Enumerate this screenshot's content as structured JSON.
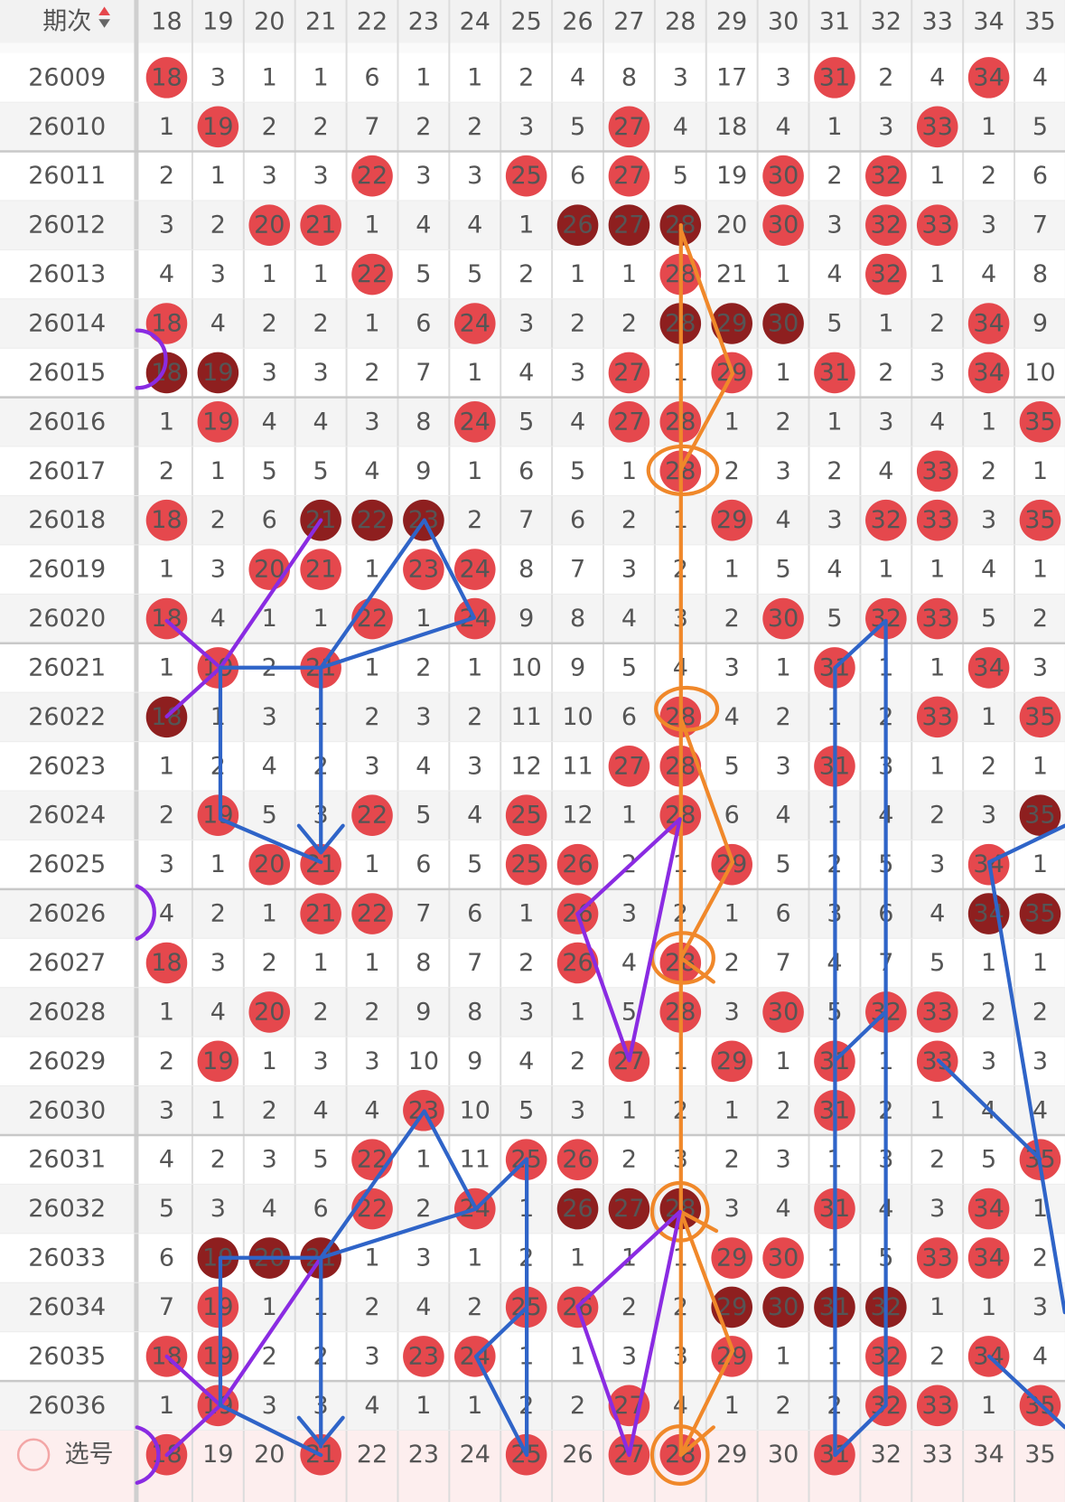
{
  "header": {
    "issue_label": "期次",
    "numbers": [
      "18",
      "19",
      "20",
      "21",
      "22",
      "23",
      "24",
      "25",
      "26",
      "27",
      "28",
      "29",
      "30",
      "31",
      "32",
      "33",
      "34",
      "35"
    ]
  },
  "rows": [
    {
      "issue": "26009",
      "cells": [
        "18",
        "3",
        "1",
        "1",
        "6",
        "1",
        "1",
        "2",
        "4",
        "8",
        "3",
        "17",
        "3",
        "31",
        "2",
        "4",
        "34",
        "4"
      ],
      "balls": [
        "red",
        null,
        null,
        null,
        null,
        null,
        null,
        null,
        null,
        null,
        null,
        null,
        null,
        "red",
        null,
        null,
        "red",
        null
      ]
    },
    {
      "issue": "26010",
      "cells": [
        "1",
        "19",
        "2",
        "2",
        "7",
        "2",
        "2",
        "3",
        "5",
        "27",
        "4",
        "18",
        "4",
        "1",
        "3",
        "33",
        "1",
        "5"
      ],
      "balls": [
        null,
        "red",
        null,
        null,
        null,
        null,
        null,
        null,
        null,
        "red",
        null,
        null,
        null,
        null,
        null,
        "red",
        null,
        null
      ]
    },
    {
      "issue": "26011",
      "cells": [
        "2",
        "1",
        "3",
        "3",
        "22",
        "3",
        "3",
        "25",
        "6",
        "27",
        "5",
        "19",
        "30",
        "2",
        "32",
        "1",
        "2",
        "6"
      ],
      "balls": [
        null,
        null,
        null,
        null,
        "red",
        null,
        null,
        "red",
        null,
        "red",
        null,
        null,
        "red",
        null,
        "red",
        null,
        null,
        null
      ]
    },
    {
      "issue": "26012",
      "cells": [
        "3",
        "2",
        "20",
        "21",
        "1",
        "4",
        "4",
        "1",
        "26",
        "27",
        "28",
        "20",
        "30",
        "3",
        "32",
        "33",
        "3",
        "7"
      ],
      "balls": [
        null,
        null,
        "red",
        "red",
        null,
        null,
        null,
        null,
        "dark",
        "dark",
        "dark",
        null,
        "red",
        null,
        "red",
        "red",
        null,
        null
      ]
    },
    {
      "issue": "26013",
      "cells": [
        "4",
        "3",
        "1",
        "1",
        "22",
        "5",
        "5",
        "2",
        "1",
        "1",
        "28",
        "21",
        "1",
        "4",
        "32",
        "1",
        "4",
        "8"
      ],
      "balls": [
        null,
        null,
        null,
        null,
        "red",
        null,
        null,
        null,
        null,
        null,
        "red",
        null,
        null,
        null,
        "red",
        null,
        null,
        null
      ]
    },
    {
      "issue": "26014",
      "cells": [
        "18",
        "4",
        "2",
        "2",
        "1",
        "6",
        "24",
        "3",
        "2",
        "2",
        "28",
        "29",
        "30",
        "5",
        "1",
        "2",
        "34",
        "9"
      ],
      "balls": [
        "red",
        null,
        null,
        null,
        null,
        null,
        "red",
        null,
        null,
        null,
        "dark",
        "dark",
        "dark",
        null,
        null,
        null,
        "red",
        null
      ]
    },
    {
      "issue": "26015",
      "cells": [
        "18",
        "19",
        "3",
        "3",
        "2",
        "7",
        "1",
        "4",
        "3",
        "27",
        "1",
        "29",
        "1",
        "31",
        "2",
        "3",
        "34",
        "10"
      ],
      "balls": [
        "dark",
        "dark",
        null,
        null,
        null,
        null,
        null,
        null,
        null,
        "red",
        null,
        "red",
        null,
        "red",
        null,
        null,
        "red",
        null
      ]
    },
    {
      "issue": "26016",
      "cells": [
        "1",
        "19",
        "4",
        "4",
        "3",
        "8",
        "24",
        "5",
        "4",
        "27",
        "28",
        "1",
        "2",
        "1",
        "3",
        "4",
        "1",
        "35"
      ],
      "balls": [
        null,
        "red",
        null,
        null,
        null,
        null,
        "red",
        null,
        null,
        "red",
        "red",
        null,
        null,
        null,
        null,
        null,
        null,
        "red"
      ]
    },
    {
      "issue": "26017",
      "cells": [
        "2",
        "1",
        "5",
        "5",
        "4",
        "9",
        "1",
        "6",
        "5",
        "1",
        "28",
        "2",
        "3",
        "2",
        "4",
        "33",
        "2",
        "1"
      ],
      "balls": [
        null,
        null,
        null,
        null,
        null,
        null,
        null,
        null,
        null,
        null,
        "red",
        null,
        null,
        null,
        null,
        "red",
        null,
        null
      ]
    },
    {
      "issue": "26018",
      "cells": [
        "18",
        "2",
        "6",
        "21",
        "22",
        "23",
        "2",
        "7",
        "6",
        "2",
        "1",
        "29",
        "4",
        "3",
        "32",
        "33",
        "3",
        "35"
      ],
      "balls": [
        "red",
        null,
        null,
        "dark",
        "dark",
        "dark",
        null,
        null,
        null,
        null,
        null,
        "red",
        null,
        null,
        "red",
        "red",
        null,
        "red"
      ]
    },
    {
      "issue": "26019",
      "cells": [
        "1",
        "3",
        "20",
        "21",
        "1",
        "23",
        "24",
        "8",
        "7",
        "3",
        "2",
        "1",
        "5",
        "4",
        "1",
        "1",
        "4",
        "1"
      ],
      "balls": [
        null,
        null,
        "red",
        "red",
        null,
        "red",
        "red",
        null,
        null,
        null,
        null,
        null,
        null,
        null,
        null,
        null,
        null,
        null
      ]
    },
    {
      "issue": "26020",
      "cells": [
        "18",
        "4",
        "1",
        "1",
        "22",
        "1",
        "24",
        "9",
        "8",
        "4",
        "3",
        "2",
        "30",
        "5",
        "32",
        "33",
        "5",
        "2"
      ],
      "balls": [
        "red",
        null,
        null,
        null,
        "red",
        null,
        "red",
        null,
        null,
        null,
        null,
        null,
        "red",
        null,
        "red",
        "red",
        null,
        null
      ]
    },
    {
      "issue": "26021",
      "cells": [
        "1",
        "19",
        "2",
        "21",
        "1",
        "2",
        "1",
        "10",
        "9",
        "5",
        "4",
        "3",
        "1",
        "31",
        "1",
        "1",
        "34",
        "3"
      ],
      "balls": [
        null,
        "red",
        null,
        "red",
        null,
        null,
        null,
        null,
        null,
        null,
        null,
        null,
        null,
        "red",
        null,
        null,
        "red",
        null
      ]
    },
    {
      "issue": "26022",
      "cells": [
        "18",
        "1",
        "3",
        "1",
        "2",
        "3",
        "2",
        "11",
        "10",
        "6",
        "28",
        "4",
        "2",
        "1",
        "2",
        "33",
        "1",
        "35"
      ],
      "balls": [
        "dark",
        null,
        null,
        null,
        null,
        null,
        null,
        null,
        null,
        null,
        "red",
        null,
        null,
        null,
        null,
        "red",
        null,
        "red"
      ]
    },
    {
      "issue": "26023",
      "cells": [
        "1",
        "2",
        "4",
        "2",
        "3",
        "4",
        "3",
        "12",
        "11",
        "27",
        "28",
        "5",
        "3",
        "31",
        "3",
        "1",
        "2",
        "1"
      ],
      "balls": [
        null,
        null,
        null,
        null,
        null,
        null,
        null,
        null,
        null,
        "red",
        "red",
        null,
        null,
        "red",
        null,
        null,
        null,
        null
      ]
    },
    {
      "issue": "26024",
      "cells": [
        "2",
        "19",
        "5",
        "3",
        "22",
        "5",
        "4",
        "25",
        "12",
        "1",
        "28",
        "6",
        "4",
        "1",
        "4",
        "2",
        "3",
        "35"
      ],
      "balls": [
        null,
        "red",
        null,
        null,
        "red",
        null,
        null,
        "red",
        null,
        null,
        "red",
        null,
        null,
        null,
        null,
        null,
        null,
        "dark"
      ]
    },
    {
      "issue": "26025",
      "cells": [
        "3",
        "1",
        "20",
        "21",
        "1",
        "6",
        "5",
        "25",
        "26",
        "2",
        "1",
        "29",
        "5",
        "2",
        "5",
        "3",
        "34",
        "1"
      ],
      "balls": [
        null,
        null,
        "red",
        "red",
        null,
        null,
        null,
        "red",
        "red",
        null,
        null,
        "red",
        null,
        null,
        null,
        null,
        "red",
        null
      ]
    },
    {
      "issue": "26026",
      "cells": [
        "4",
        "2",
        "1",
        "21",
        "22",
        "7",
        "6",
        "1",
        "26",
        "3",
        "2",
        "1",
        "6",
        "3",
        "6",
        "4",
        "34",
        "35"
      ],
      "balls": [
        null,
        null,
        null,
        "red",
        "red",
        null,
        null,
        null,
        "red",
        null,
        null,
        null,
        null,
        null,
        null,
        null,
        "dark",
        "dark"
      ]
    },
    {
      "issue": "26027",
      "cells": [
        "18",
        "3",
        "2",
        "1",
        "1",
        "8",
        "7",
        "2",
        "26",
        "4",
        "28",
        "2",
        "7",
        "4",
        "7",
        "5",
        "1",
        "1"
      ],
      "balls": [
        "red",
        null,
        null,
        null,
        null,
        null,
        null,
        null,
        "red",
        null,
        "red",
        null,
        null,
        null,
        null,
        null,
        null,
        null
      ]
    },
    {
      "issue": "26028",
      "cells": [
        "1",
        "4",
        "20",
        "2",
        "2",
        "9",
        "8",
        "3",
        "1",
        "5",
        "28",
        "3",
        "30",
        "5",
        "32",
        "33",
        "2",
        "2"
      ],
      "balls": [
        null,
        null,
        "red",
        null,
        null,
        null,
        null,
        null,
        null,
        null,
        "red",
        null,
        "red",
        null,
        "red",
        "red",
        null,
        null
      ]
    },
    {
      "issue": "26029",
      "cells": [
        "2",
        "19",
        "1",
        "3",
        "3",
        "10",
        "9",
        "4",
        "2",
        "27",
        "1",
        "29",
        "1",
        "31",
        "1",
        "33",
        "3",
        "3"
      ],
      "balls": [
        null,
        "red",
        null,
        null,
        null,
        null,
        null,
        null,
        null,
        "red",
        null,
        "red",
        null,
        "red",
        null,
        "red",
        null,
        null
      ]
    },
    {
      "issue": "26030",
      "cells": [
        "3",
        "1",
        "2",
        "4",
        "4",
        "23",
        "10",
        "5",
        "3",
        "1",
        "2",
        "1",
        "2",
        "31",
        "2",
        "1",
        "4",
        "4"
      ],
      "balls": [
        null,
        null,
        null,
        null,
        null,
        "red",
        null,
        null,
        null,
        null,
        null,
        null,
        null,
        "red",
        null,
        null,
        null,
        null
      ]
    },
    {
      "issue": "26031",
      "cells": [
        "4",
        "2",
        "3",
        "5",
        "22",
        "1",
        "11",
        "25",
        "26",
        "2",
        "3",
        "2",
        "3",
        "1",
        "3",
        "2",
        "5",
        "35"
      ],
      "balls": [
        null,
        null,
        null,
        null,
        "red",
        null,
        null,
        "red",
        "red",
        null,
        null,
        null,
        null,
        null,
        null,
        null,
        null,
        "red"
      ]
    },
    {
      "issue": "26032",
      "cells": [
        "5",
        "3",
        "4",
        "6",
        "22",
        "2",
        "24",
        "1",
        "26",
        "27",
        "28",
        "3",
        "4",
        "31",
        "4",
        "3",
        "34",
        "1"
      ],
      "balls": [
        null,
        null,
        null,
        null,
        "red",
        null,
        "red",
        null,
        "dark",
        "dark",
        "dark",
        null,
        null,
        "red",
        null,
        null,
        "red",
        null
      ]
    },
    {
      "issue": "26033",
      "cells": [
        "6",
        "19",
        "20",
        "21",
        "1",
        "3",
        "1",
        "2",
        "1",
        "1",
        "1",
        "29",
        "30",
        "1",
        "5",
        "33",
        "34",
        "2"
      ],
      "balls": [
        null,
        "dark",
        "dark",
        "dark",
        null,
        null,
        null,
        null,
        null,
        null,
        null,
        "red",
        "red",
        null,
        null,
        "red",
        "red",
        null
      ]
    },
    {
      "issue": "26034",
      "cells": [
        "7",
        "19",
        "1",
        "1",
        "2",
        "4",
        "2",
        "25",
        "26",
        "2",
        "2",
        "29",
        "30",
        "31",
        "32",
        "1",
        "1",
        "3"
      ],
      "balls": [
        null,
        "red",
        null,
        null,
        null,
        null,
        null,
        "red",
        "red",
        null,
        null,
        "dark",
        "dark",
        "dark",
        "dark",
        null,
        null,
        null
      ]
    },
    {
      "issue": "26035",
      "cells": [
        "18",
        "19",
        "2",
        "2",
        "3",
        "23",
        "24",
        "1",
        "1",
        "3",
        "3",
        "29",
        "1",
        "1",
        "32",
        "2",
        "34",
        "4"
      ],
      "balls": [
        "red",
        "red",
        null,
        null,
        null,
        "red",
        "red",
        null,
        null,
        null,
        null,
        "red",
        null,
        null,
        "red",
        null,
        "red",
        null
      ]
    },
    {
      "issue": "26036",
      "cells": [
        "1",
        "19",
        "3",
        "3",
        "4",
        "1",
        "1",
        "2",
        "2",
        "27",
        "4",
        "1",
        "2",
        "2",
        "32",
        "33",
        "1",
        "35"
      ],
      "balls": [
        null,
        "red",
        null,
        null,
        null,
        null,
        null,
        null,
        null,
        "red",
        null,
        null,
        null,
        null,
        "red",
        "red",
        null,
        "red"
      ]
    }
  ],
  "pick_row": {
    "label": "选号",
    "numbers": [
      "18",
      "19",
      "20",
      "21",
      "22",
      "23",
      "24",
      "25",
      "26",
      "27",
      "28",
      "29",
      "30",
      "31",
      "32",
      "33",
      "34",
      "35"
    ],
    "balls": [
      "red",
      null,
      null,
      "red",
      null,
      null,
      null,
      "red",
      null,
      "red",
      "red",
      null,
      null,
      "red",
      null,
      null,
      null,
      null
    ]
  }
}
